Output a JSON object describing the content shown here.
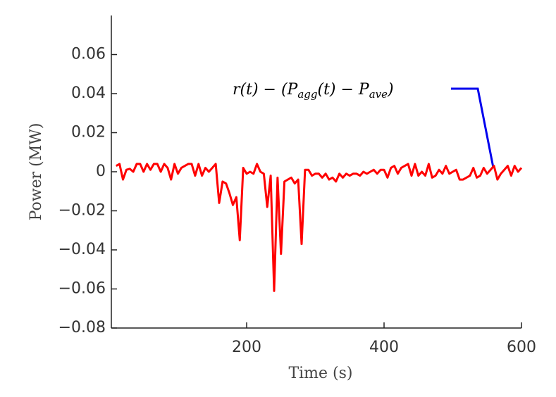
{
  "chart_data": {
    "type": "line",
    "xlabel": "Time (s)",
    "ylabel": "Power (MW)",
    "annotation": [
      "r(t) − (P",
      "agg",
      "(t) − P",
      "ave",
      ")"
    ],
    "xlim": [
      0,
      600
    ],
    "xticks": [
      200,
      400,
      600
    ],
    "ylim": [
      -0.08,
      0.08
    ],
    "yticks": [
      {
        "value": -0.08,
        "label": "−0.08"
      },
      {
        "value": -0.06,
        "label": "−0.06"
      },
      {
        "value": -0.04,
        "label": "−0.04"
      },
      {
        "value": -0.02,
        "label": "−0.02"
      },
      0,
      0.02,
      0.04,
      0.06
    ],
    "grid": false,
    "series": [
      {
        "name": "r(t) − (Pagg(t) − Pave)",
        "color": "#ff0000",
        "x": [
          10,
          15,
          20,
          25,
          30,
          35,
          40,
          45,
          50,
          55,
          60,
          65,
          70,
          75,
          80,
          85,
          90,
          95,
          100,
          105,
          110,
          115,
          120,
          125,
          130,
          135,
          140,
          145,
          150,
          155,
          160,
          165,
          170,
          175,
          180,
          185,
          190,
          195,
          200,
          205,
          210,
          215,
          220,
          225,
          230,
          235,
          240,
          245,
          250,
          255,
          260,
          265,
          270,
          275,
          280,
          285,
          290,
          295,
          300,
          305,
          310,
          315,
          320,
          325,
          330,
          335,
          340,
          345,
          350,
          355,
          360,
          365,
          370,
          375,
          380,
          385,
          390,
          395,
          400,
          405,
          410,
          415,
          420,
          425,
          430,
          435,
          440,
          445,
          450,
          455,
          460,
          465,
          470,
          475,
          480,
          485,
          490,
          495,
          500,
          505,
          510,
          515,
          520,
          525,
          530,
          535,
          540,
          545,
          550,
          555,
          560,
          565,
          570,
          575,
          580,
          585,
          590,
          595,
          600
        ],
        "values": [
          0.003,
          0.004,
          -0.004,
          0.001,
          0.0015,
          0,
          0.004,
          0.004,
          0,
          0.004,
          0.001,
          0.004,
          0.004,
          0,
          0.004,
          0.002,
          -0.004,
          0.004,
          -0.001,
          0.002,
          0.003,
          0.004,
          0.004,
          -0.002,
          0.004,
          -0.002,
          0.002,
          0,
          0.002,
          0.004,
          -0.016,
          -0.005,
          -0.006,
          -0.011,
          -0.017,
          -0.013,
          -0.035,
          0.002,
          -0.001,
          0,
          -0.001,
          0.004,
          0,
          -0.001,
          -0.018,
          -0.002,
          -0.061,
          -0.003,
          -0.042,
          -0.005,
          -0.004,
          -0.003,
          -0.006,
          -0.004,
          -0.037,
          0.001,
          0.001,
          -0.002,
          -0.001,
          -0.001,
          -0.003,
          -0.001,
          -0.004,
          -0.003,
          -0.005,
          -0.001,
          -0.003,
          -0.001,
          -0.002,
          -0.001,
          -0.001,
          -0.002,
          0,
          -0.001,
          0,
          0.001,
          -0.001,
          0.001,
          0.001,
          -0.003,
          0.002,
          0.003,
          -0.001,
          0.002,
          0.003,
          0.004,
          -0.002,
          0.004,
          -0.002,
          0,
          -0.002,
          0.004,
          -0.003,
          -0.002,
          0.001,
          -0.001,
          0.003,
          -0.001,
          0,
          0.001,
          -0.004,
          -0.004,
          -0.003,
          -0.002,
          0.002,
          -0.003,
          -0.002,
          0.002,
          -0.001,
          0.001,
          0.003,
          -0.004,
          -0.001,
          0.001,
          0.003,
          -0.002,
          0.003,
          0,
          0.002
        ]
      }
    ]
  }
}
